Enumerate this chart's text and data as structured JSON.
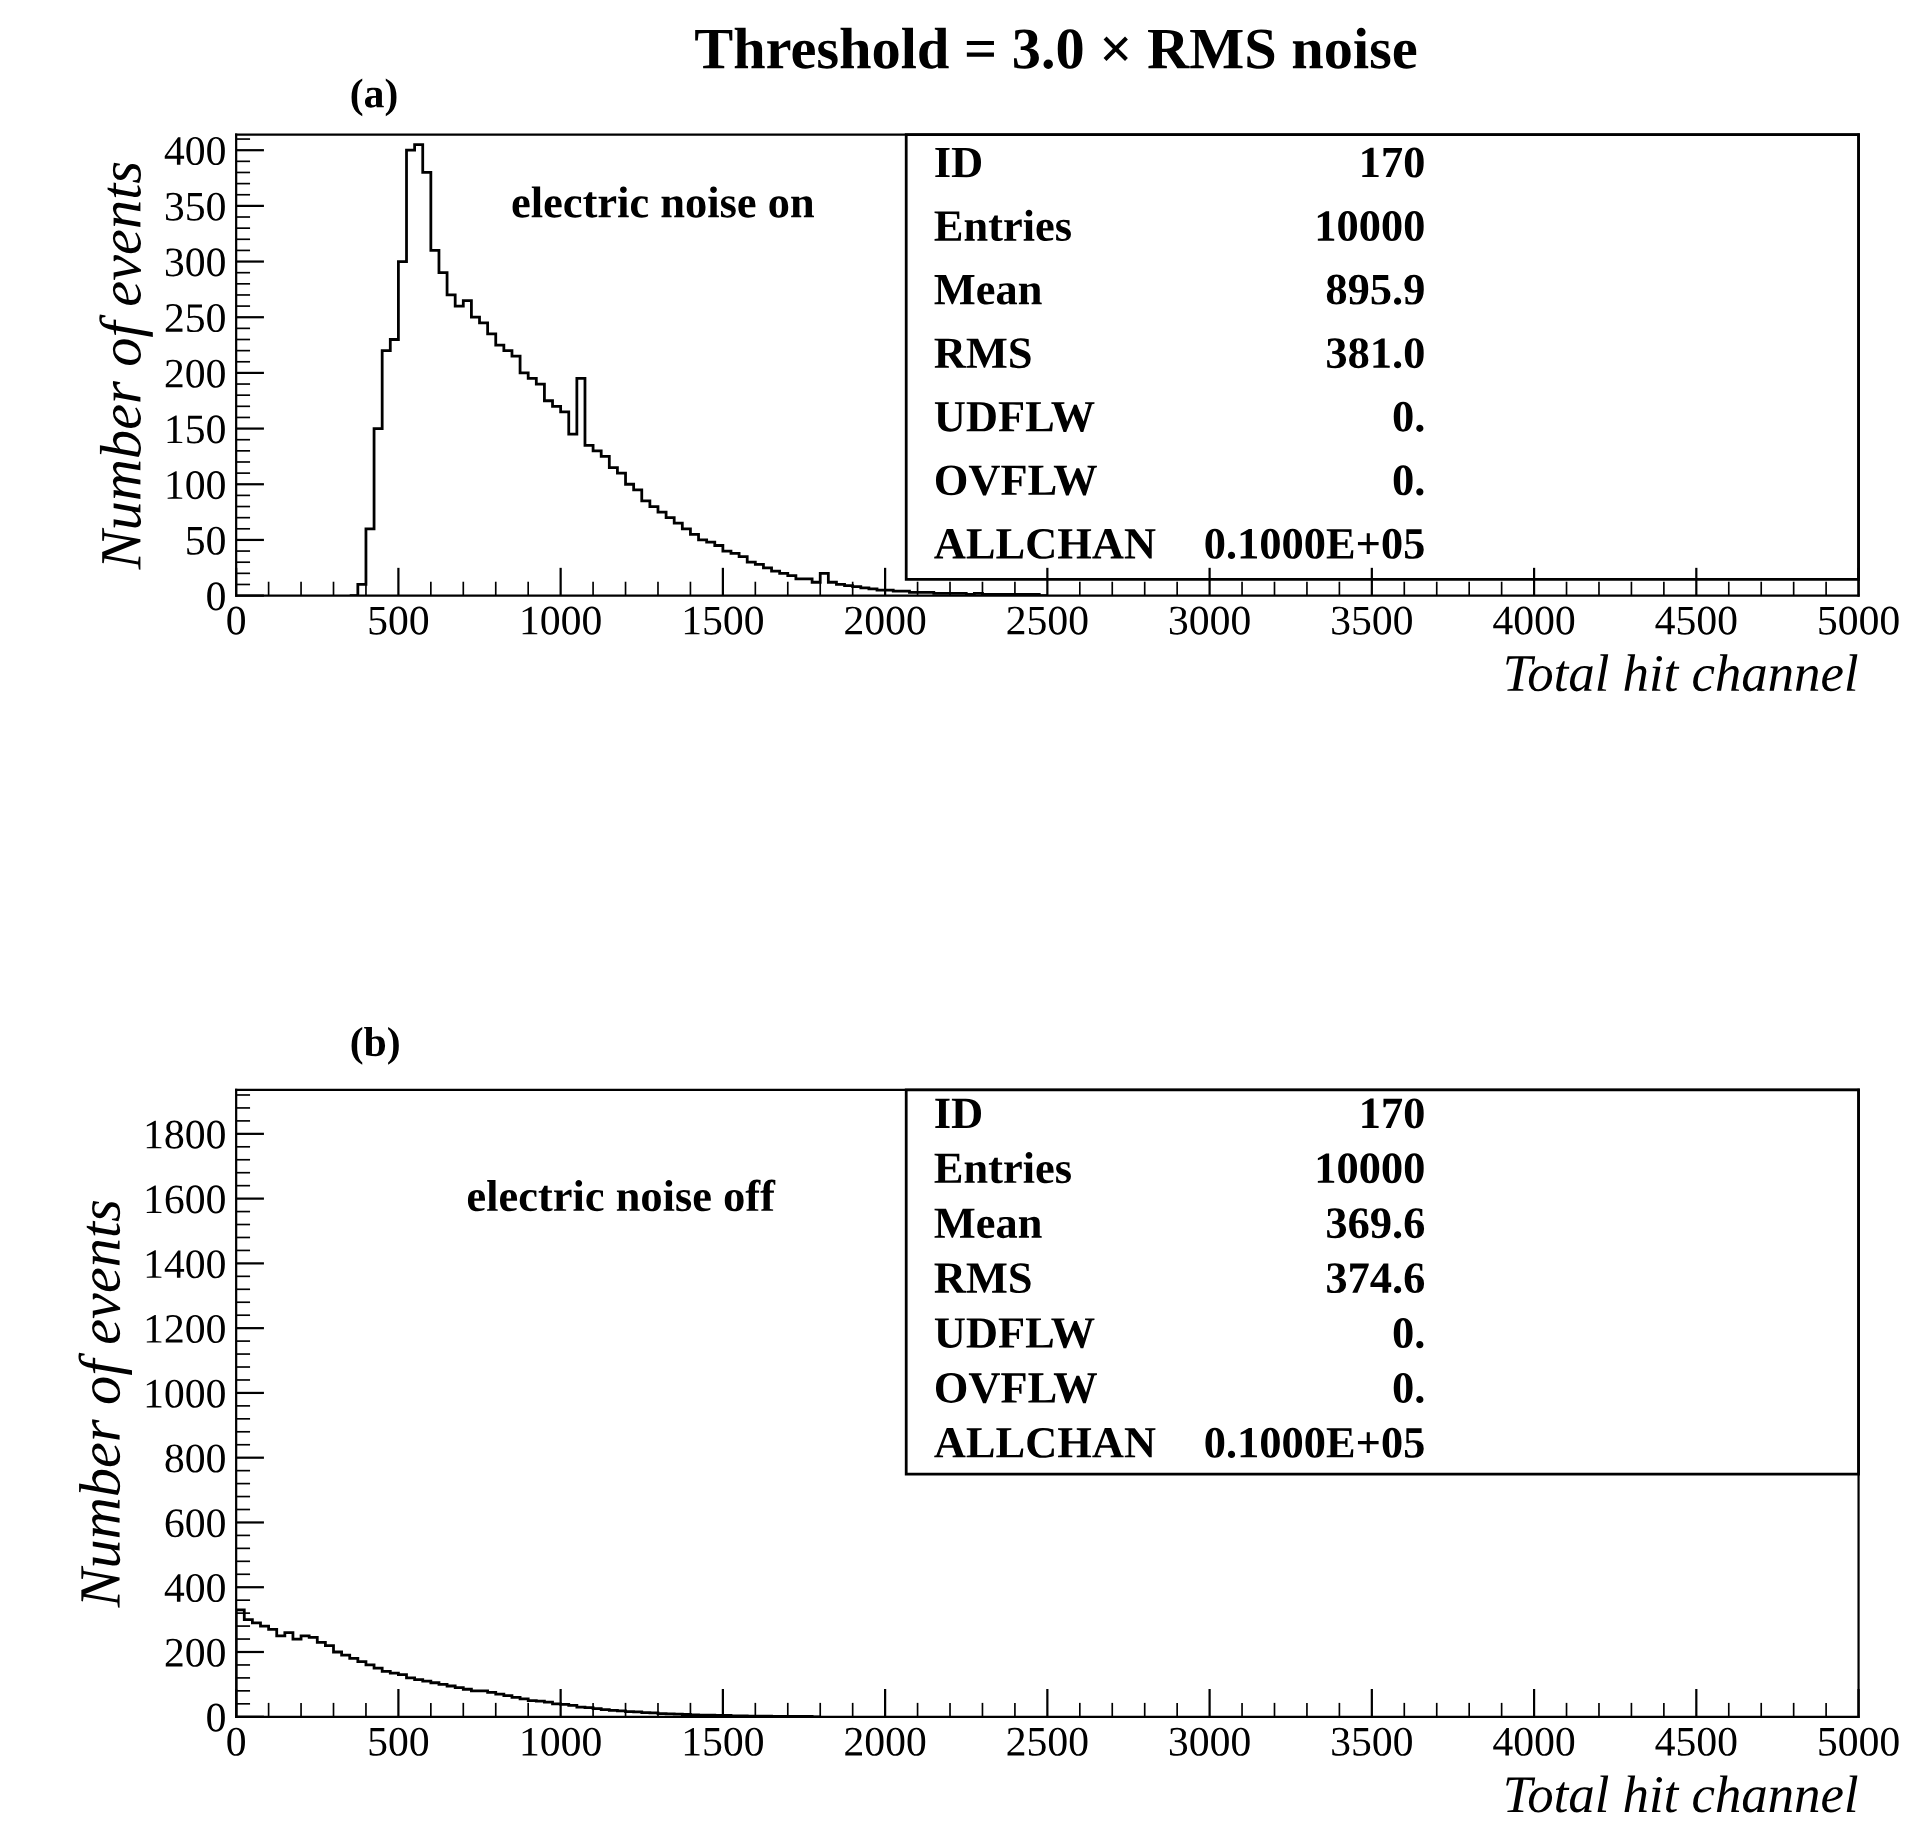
{
  "chart_data": [
    {
      "type": "histogram",
      "title": "Threshold = 3.0 × RMS noise",
      "xlabel": "Total hit channel",
      "ylabel": "Number of events",
      "annotations": [
        "(a)",
        "electric noise on",
        "ID",
        "170",
        "Entries",
        "10000",
        "Mean",
        "895.9",
        "RMS",
        "381.0",
        "UDFLW",
        "0.",
        "OVFLW",
        "0.",
        "ALLCHAN",
        "0.1000E+05"
      ],
      "bins": [
        350,
        375,
        400,
        425,
        450,
        475,
        500,
        525,
        550,
        575,
        600,
        625,
        650,
        675,
        700,
        725,
        750,
        775,
        800,
        825,
        850,
        875,
        900,
        925,
        950,
        975,
        1000,
        1025,
        1050,
        1075,
        1100,
        1125,
        1150,
        1175,
        1200,
        1225,
        1250,
        1275,
        1300,
        1325,
        1350,
        1375,
        1400,
        1425,
        1450,
        1475,
        1500,
        1525,
        1550,
        1575,
        1600,
        1625,
        1650,
        1675,
        1700,
        1725,
        1750,
        1775,
        1800,
        1825,
        1850,
        1875,
        1900,
        1925,
        1950,
        1975,
        2000,
        2025,
        2050,
        2075,
        2100,
        2125,
        2150,
        2175,
        2200,
        2225,
        2250,
        2275,
        2300,
        2325,
        2350,
        2375,
        2400,
        2425,
        2450,
        2475,
        2500
      ],
      "values": [
        0,
        10,
        60,
        150,
        220,
        230,
        300,
        400,
        405,
        380,
        310,
        290,
        270,
        260,
        265,
        250,
        245,
        235,
        225,
        220,
        215,
        200,
        195,
        190,
        175,
        170,
        165,
        145,
        195,
        135,
        130,
        125,
        115,
        110,
        100,
        95,
        85,
        80,
        75,
        70,
        65,
        60,
        55,
        50,
        48,
        45,
        40,
        38,
        35,
        30,
        28,
        25,
        22,
        20,
        18,
        15,
        15,
        12,
        20,
        12,
        10,
        9,
        8,
        7,
        6,
        5,
        5,
        4,
        4,
        3,
        3,
        3,
        2,
        2,
        2,
        2,
        1,
        2,
        1,
        1,
        1,
        1,
        1,
        1,
        1,
        0
      ],
      "color": "#000000",
      "xlim": [
        0,
        5000
      ],
      "xticks": [
        0,
        500,
        1000,
        1500,
        2000,
        2500,
        3000,
        3500,
        4000,
        4500,
        5000
      ],
      "ylim": [
        0,
        414
      ],
      "yticks": [
        0,
        50,
        100,
        150,
        200,
        250,
        300,
        350,
        400
      ],
      "grid": false,
      "legend": false
    },
    {
      "type": "histogram",
      "xlabel": "Total hit channel",
      "ylabel": "Number of events",
      "annotations": [
        "(b)",
        "electric noise off",
        "ID",
        "170",
        "Entries",
        "10000",
        "Mean",
        "369.6",
        "RMS",
        "374.6",
        "UDFLW",
        "0.",
        "OVFLW",
        "0.",
        "ALLCHAN",
        "0.1000E+05"
      ],
      "bins": [
        0,
        25,
        50,
        75,
        100,
        125,
        150,
        175,
        200,
        225,
        250,
        275,
        300,
        325,
        350,
        375,
        400,
        425,
        450,
        475,
        500,
        525,
        550,
        575,
        600,
        625,
        650,
        675,
        700,
        725,
        750,
        775,
        800,
        825,
        850,
        875,
        900,
        925,
        950,
        975,
        1000,
        1025,
        1050,
        1075,
        1100,
        1125,
        1150,
        1175,
        1200,
        1225,
        1250,
        1275,
        1300,
        1325,
        1350,
        1375,
        1400,
        1425,
        1450,
        1475,
        1500,
        1525,
        1550,
        1575,
        1600,
        1625,
        1650,
        1675,
        1700,
        1725,
        1750,
        1775,
        1800
      ],
      "values": [
        330,
        300,
        290,
        280,
        270,
        250,
        260,
        240,
        250,
        245,
        230,
        220,
        200,
        190,
        180,
        170,
        160,
        150,
        140,
        135,
        130,
        120,
        115,
        110,
        105,
        100,
        95,
        90,
        85,
        80,
        80,
        75,
        70,
        65,
        60,
        55,
        50,
        48,
        45,
        40,
        38,
        35,
        30,
        28,
        25,
        22,
        20,
        18,
        16,
        15,
        13,
        12,
        10,
        9,
        8,
        7,
        6,
        5,
        5,
        4,
        4,
        3,
        3,
        2,
        2,
        2,
        1,
        1,
        1,
        1,
        1,
        0
      ],
      "color": "#000000",
      "xlim": [
        0,
        5000
      ],
      "xticks": [
        0,
        500,
        1000,
        1500,
        2000,
        2500,
        3000,
        3500,
        4000,
        4500,
        5000
      ],
      "ylim": [
        0,
        1936
      ],
      "yticks": [
        0,
        200,
        400,
        600,
        800,
        1000,
        1200,
        1400,
        1600,
        1800
      ],
      "grid": false,
      "legend": false
    }
  ]
}
